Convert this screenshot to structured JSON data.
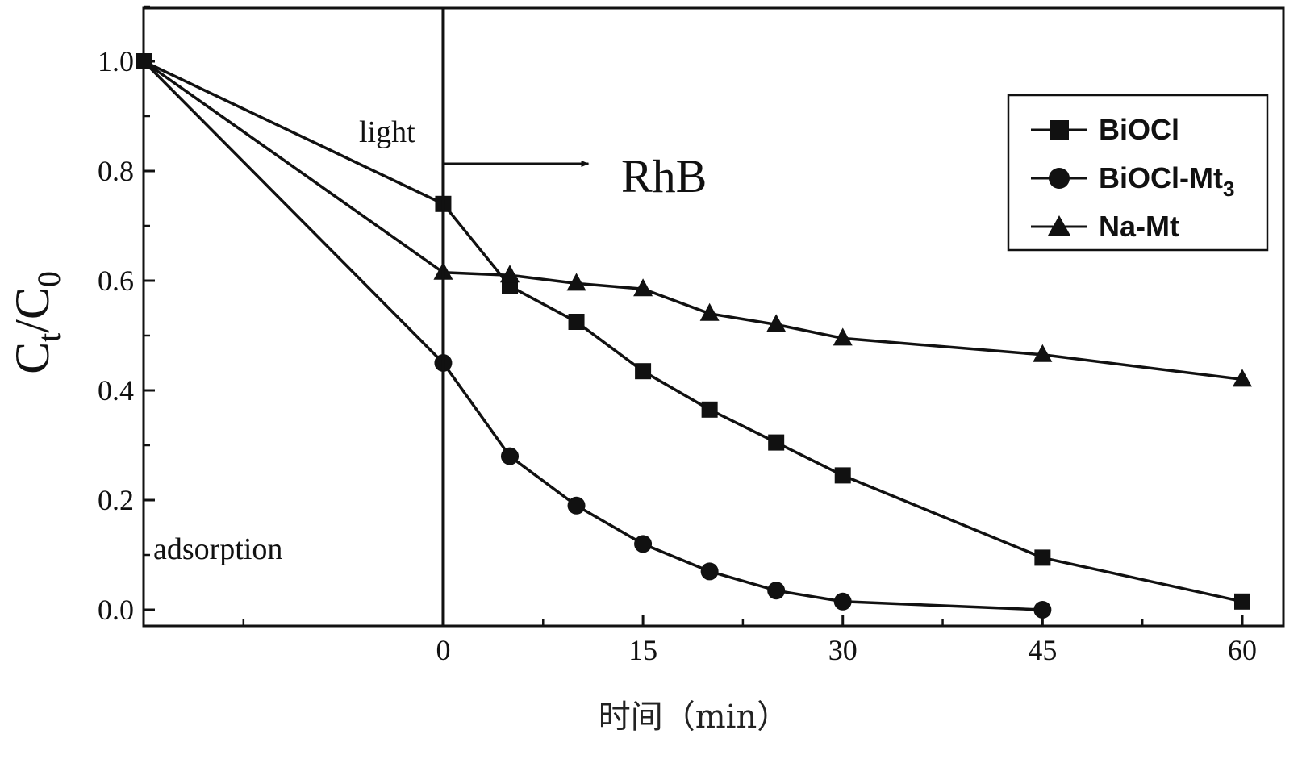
{
  "chart_data": {
    "type": "line",
    "xlabel": "时间（min）",
    "ylabel": "C",
    "ylabel_sub1": "t",
    "ylabel_mid": "/C",
    "ylabel_sub2": "0",
    "xlim": [
      -22.5,
      60
    ],
    "ylim": [
      0,
      1.1
    ],
    "x_ticks": [
      0,
      15,
      30,
      45,
      60
    ],
    "x_ticks_labels": [
      "0",
      "15",
      "30",
      "45",
      "60"
    ],
    "x_minor_ticks": [
      -15,
      7.5,
      22.5,
      37.5,
      52.5
    ],
    "y_ticks": [
      0.0,
      0.2,
      0.4,
      0.6,
      0.8,
      1.0
    ],
    "y_ticks_labels": [
      "0.0",
      "0.2",
      "0.4",
      "0.6",
      "0.8",
      "1.0"
    ],
    "series": [
      {
        "name": "BiOCl",
        "marker": "square",
        "x": [
          -22.5,
          0,
          5,
          10,
          15,
          20,
          25,
          30,
          45,
          60
        ],
        "y": [
          1.0,
          0.74,
          0.59,
          0.525,
          0.435,
          0.365,
          0.305,
          0.245,
          0.095,
          0.015
        ]
      },
      {
        "name": "BiOCl-Mt",
        "name_sub": "3",
        "marker": "circle",
        "x": [
          -22.5,
          0,
          5,
          10,
          15,
          20,
          25,
          30,
          45
        ],
        "y": [
          1.0,
          0.45,
          0.28,
          0.19,
          0.12,
          0.07,
          0.035,
          0.015,
          0.0
        ]
      },
      {
        "name": "Na-Mt",
        "marker": "triangle",
        "x": [
          -22.5,
          0,
          5,
          10,
          15,
          20,
          25,
          30,
          45,
          60
        ],
        "y": [
          1.0,
          0.615,
          0.61,
          0.595,
          0.585,
          0.54,
          0.52,
          0.495,
          0.465,
          0.42
        ]
      }
    ],
    "annotations": {
      "light": "light",
      "compound": "RhB",
      "adsorption": "adsorption"
    },
    "divider_x": 0,
    "legend_position": "top-right",
    "grid": false
  }
}
